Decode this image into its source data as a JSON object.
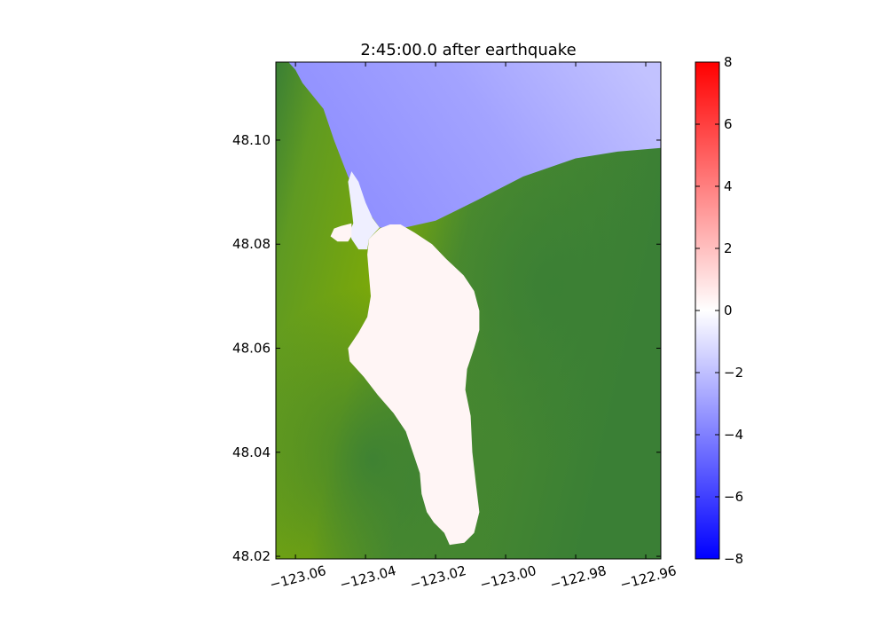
{
  "chart_data": {
    "type": "heatmap",
    "title": "2:45:00.0 after earthquake",
    "xlabel": "",
    "ylabel": "",
    "xlim": [
      -123.0656,
      -122.9557
    ],
    "ylim": [
      48.0195,
      48.115
    ],
    "x_ticks": [
      -123.06,
      -123.04,
      -123.02,
      -123.0,
      -122.98,
      -122.96
    ],
    "x_tick_labels": [
      "−123.06",
      "−123.04",
      "−123.02",
      "−123.00",
      "−122.98",
      "−122.96"
    ],
    "y_ticks": [
      48.02,
      48.04,
      48.06,
      48.08,
      48.1
    ],
    "y_tick_labels": [
      "48.02",
      "48.04",
      "48.06",
      "48.08",
      "48.10"
    ],
    "colorbar": {
      "range": [
        -8,
        8
      ],
      "ticks": [
        -8,
        -6,
        -4,
        -2,
        0,
        2,
        4,
        6,
        8
      ],
      "tick_labels": [
        "−8",
        "−6",
        "−4",
        "−2",
        "0",
        "2",
        "4",
        "6",
        "8"
      ],
      "colormap": [
        "#0000ff",
        "#ffffff",
        "#ff0000"
      ]
    },
    "land_colors": [
      "#7aa80a",
      "#3a7f35"
    ],
    "regions": [
      {
        "name": "northern-water",
        "value": -3,
        "polygon": [
          [
            -123.0655,
            48.115
          ],
          [
            -122.9557,
            48.115
          ],
          [
            -122.9557,
            48.0985
          ],
          [
            -122.968,
            48.0978
          ],
          [
            -122.98,
            48.0965
          ],
          [
            -122.995,
            48.093
          ],
          [
            -123.008,
            48.0885
          ],
          [
            -123.02,
            48.0845
          ],
          [
            -123.03,
            48.083
          ],
          [
            -123.036,
            48.0832
          ],
          [
            -123.04,
            48.087
          ],
          [
            -123.045,
            48.093
          ],
          [
            -123.049,
            48.1
          ],
          [
            -123.052,
            48.106
          ],
          [
            -123.058,
            48.111
          ],
          [
            -123.06,
            48.1135
          ],
          [
            -123.062,
            48.115
          ]
        ]
      },
      {
        "name": "inlet-water",
        "value": 0.3,
        "polygon": [
          [
            -123.03,
            48.0838
          ],
          [
            -123.026,
            48.0822
          ],
          [
            -123.021,
            48.08
          ],
          [
            -123.017,
            48.0772
          ],
          [
            -123.012,
            48.074
          ],
          [
            -123.009,
            48.071
          ],
          [
            -123.0075,
            48.0672
          ],
          [
            -123.0075,
            48.0635
          ],
          [
            -123.009,
            48.06
          ],
          [
            -123.011,
            48.056
          ],
          [
            -123.0115,
            48.052
          ],
          [
            -123.01,
            48.047
          ],
          [
            -123.0095,
            48.04
          ],
          [
            -123.0085,
            48.034
          ],
          [
            -123.0075,
            48.0285
          ],
          [
            -123.009,
            48.0245
          ],
          [
            -123.0118,
            48.0226
          ],
          [
            -123.016,
            48.0222
          ],
          [
            -123.0175,
            48.0245
          ],
          [
            -123.0205,
            48.0265
          ],
          [
            -123.0225,
            48.0285
          ],
          [
            -123.024,
            48.032
          ],
          [
            -123.0245,
            48.036
          ],
          [
            -123.0265,
            48.04
          ],
          [
            -123.0285,
            48.044
          ],
          [
            -123.032,
            48.0475
          ],
          [
            -123.0365,
            48.051
          ],
          [
            -123.0405,
            48.0545
          ],
          [
            -123.0445,
            48.0575
          ],
          [
            -123.045,
            48.06
          ],
          [
            -123.042,
            48.063
          ],
          [
            -123.0395,
            48.066
          ],
          [
            -123.0385,
            48.07
          ],
          [
            -123.039,
            48.074
          ],
          [
            -123.0395,
            48.078
          ],
          [
            -123.039,
            48.081
          ],
          [
            -123.036,
            48.083
          ],
          [
            -123.033,
            48.0838
          ]
        ]
      },
      {
        "name": "channel-water",
        "value": -0.5,
        "polygon": [
          [
            -123.036,
            48.0832
          ],
          [
            -123.039,
            48.081
          ],
          [
            -123.0395,
            48.079
          ],
          [
            -123.042,
            48.079
          ],
          [
            -123.044,
            48.081
          ],
          [
            -123.0445,
            48.0825
          ],
          [
            -123.0435,
            48.084
          ],
          [
            -123.044,
            48.087
          ],
          [
            -123.045,
            48.092
          ],
          [
            -123.044,
            48.094
          ],
          [
            -123.042,
            48.092
          ],
          [
            -123.04,
            48.088
          ],
          [
            -123.038,
            48.085
          ]
        ]
      },
      {
        "name": "west-lagoon",
        "value": 0.3,
        "polygon": [
          [
            -123.044,
            48.084
          ],
          [
            -123.047,
            48.0835
          ],
          [
            -123.049,
            48.083
          ],
          [
            -123.05,
            48.0815
          ],
          [
            -123.048,
            48.0805
          ],
          [
            -123.045,
            48.0805
          ],
          [
            -123.044,
            48.0815
          ]
        ]
      }
    ]
  }
}
